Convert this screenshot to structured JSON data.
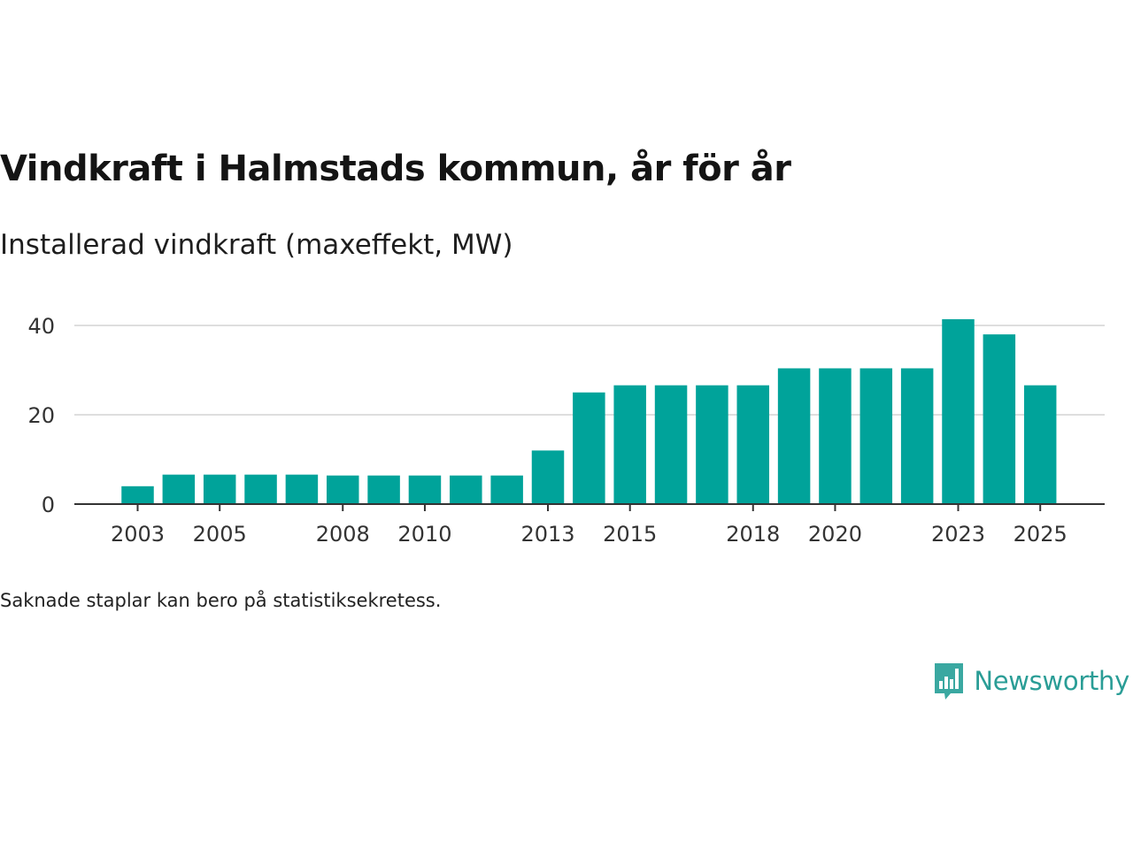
{
  "header": {
    "title": "Vindkraft i Halmstads kommun, år för år",
    "subtitle": "Installerad vindkraft (maxeffekt, MW)"
  },
  "footnote": "Saknade staplar kan bero på statistiksekretess.",
  "brand": {
    "name": "Newsworthy",
    "icon": "newsworthy-logo-icon"
  },
  "colors": {
    "bar": "#00a39a",
    "grid": "#dedede",
    "axis": "#333333",
    "brand": "#2a9d96"
  },
  "chart_data": {
    "type": "bar",
    "categories": [
      "2003",
      "2004",
      "2005",
      "2006",
      "2007",
      "2008",
      "2009",
      "2010",
      "2011",
      "2012",
      "2013",
      "2014",
      "2015",
      "2016",
      "2017",
      "2018",
      "2019",
      "2020",
      "2021",
      "2022",
      "2023",
      "2024",
      "2025"
    ],
    "values": [
      4,
      6.6,
      6.6,
      6.6,
      6.6,
      6.4,
      6.4,
      6.4,
      6.4,
      6.4,
      12,
      25,
      26.6,
      26.6,
      26.6,
      26.6,
      30.4,
      30.4,
      30.4,
      30.4,
      41.4,
      38,
      26.6
    ],
    "x_tick_labels": [
      "2003",
      "2005",
      "2008",
      "2010",
      "2013",
      "2015",
      "2018",
      "2020",
      "2023",
      "2025"
    ],
    "y_ticks": [
      0,
      20,
      40
    ],
    "ylim": [
      0,
      44
    ],
    "grid": true,
    "legend": "none"
  }
}
